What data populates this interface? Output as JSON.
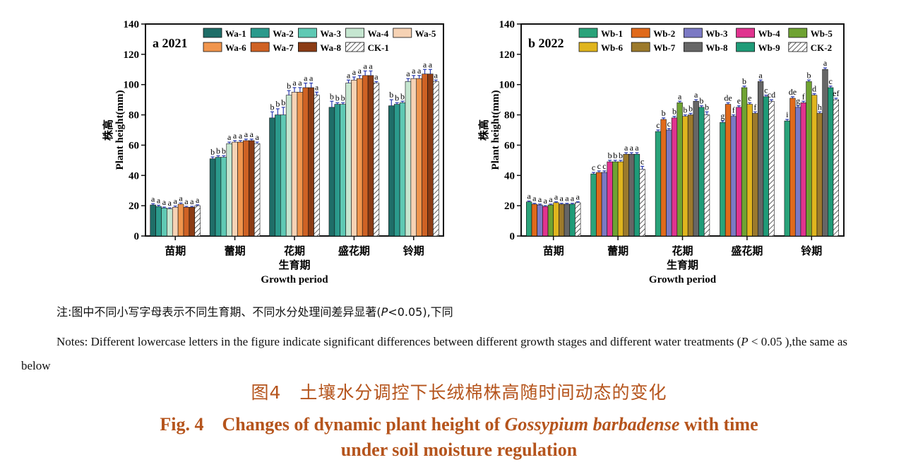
{
  "chart_data": [
    {
      "type": "bar",
      "panel_label": "a 2021",
      "ylabel_cn": "株高",
      "ylabel": "Plant height(mm)",
      "xlabel_cn": "生育期",
      "xlabel": "Growth period",
      "ylim": [
        0,
        140
      ],
      "yticks": [
        0,
        20,
        40,
        60,
        80,
        100,
        120,
        140
      ],
      "categories": [
        "苗期",
        "蕾期",
        "花期",
        "盛花期",
        "铃期"
      ],
      "legend_position": "top",
      "series": [
        {
          "name": "Wa-1",
          "color": "#1f6e68",
          "values": [
            20.5,
            51,
            78,
            85,
            86
          ],
          "errors": [
            0.8,
            1.2,
            4,
            4,
            4
          ],
          "letters": [
            "a",
            "b",
            "b",
            "b",
            "b"
          ]
        },
        {
          "name": "Wa-2",
          "color": "#2b9a8c",
          "values": [
            19.5,
            52,
            80,
            87,
            87
          ],
          "errors": [
            0.8,
            1,
            4,
            1,
            1
          ],
          "letters": [
            "a",
            "b",
            "b",
            "b",
            "b"
          ]
        },
        {
          "name": "Wa-3",
          "color": "#5fc9b4",
          "values": [
            18.5,
            52,
            80,
            87,
            88
          ],
          "errors": [
            0.6,
            1,
            5,
            1,
            1
          ],
          "letters": [
            "a",
            "b",
            "b",
            "b",
            "b"
          ]
        },
        {
          "name": "Wa-4",
          "color": "#c5e6d0",
          "values": [
            18,
            61,
            93,
            101,
            102
          ],
          "errors": [
            0.6,
            1,
            3,
            2,
            2
          ],
          "letters": [
            "a",
            "a",
            "b",
            "a",
            "a"
          ]
        },
        {
          "name": "Wa-5",
          "color": "#f6d2b4",
          "values": [
            19,
            62,
            95,
            103,
            104
          ],
          "errors": [
            0.8,
            1,
            3,
            2,
            2
          ],
          "letters": [
            "a",
            "a",
            "a",
            "a",
            "a"
          ]
        },
        {
          "name": "Wa-6",
          "color": "#f0954d",
          "values": [
            21,
            62,
            95,
            104,
            104
          ],
          "errors": [
            0.8,
            1,
            3,
            2,
            2
          ],
          "letters": [
            "a",
            "a",
            "a",
            "a",
            "a"
          ]
        },
        {
          "name": "Wa-7",
          "color": "#cf6224",
          "values": [
            19,
            63,
            98,
            106,
            107
          ],
          "errors": [
            0.6,
            1,
            3,
            3,
            3
          ],
          "letters": [
            "a",
            "a",
            "a",
            "a",
            "a"
          ]
        },
        {
          "name": "Wa-8",
          "color": "#8b3c15",
          "values": [
            19,
            63,
            98,
            106,
            107
          ],
          "errors": [
            0.6,
            1,
            3,
            3,
            3
          ],
          "letters": [
            "a",
            "a",
            "a",
            "a",
            "a"
          ]
        },
        {
          "name": "CK-1",
          "color": "#ffffff",
          "hatched": true,
          "values": [
            20,
            61,
            93,
            101,
            102
          ],
          "errors": [
            0.6,
            1,
            2,
            1,
            1
          ],
          "letters": [
            "a",
            "a",
            "a",
            "a",
            "a"
          ]
        }
      ]
    },
    {
      "type": "bar",
      "panel_label": "b 2022",
      "ylabel_cn": "株高",
      "ylabel": "Plant height(mm)",
      "xlabel_cn": "生育期",
      "xlabel": "Growth period",
      "ylim": [
        0,
        140
      ],
      "yticks": [
        0,
        20,
        40,
        60,
        80,
        100,
        120,
        140
      ],
      "categories": [
        "苗期",
        "蕾期",
        "花期",
        "盛花期",
        "铃期"
      ],
      "legend_position": "top",
      "series": [
        {
          "name": "Wb-1",
          "color": "#2aa37a",
          "values": [
            22.5,
            41,
            69,
            75,
            76
          ],
          "errors": [
            0.6,
            1,
            1,
            1,
            1
          ],
          "letters": [
            "a",
            "c",
            "c",
            "g",
            "i"
          ]
        },
        {
          "name": "Wb-2",
          "color": "#e06a1b",
          "values": [
            21,
            42,
            77,
            87,
            91
          ],
          "errors": [
            0.6,
            1,
            1,
            1,
            1
          ],
          "letters": [
            "a",
            "c",
            "b",
            "de",
            "de"
          ]
        },
        {
          "name": "Wb-3",
          "color": "#7b79c4",
          "values": [
            20.5,
            42,
            70,
            79,
            85
          ],
          "errors": [
            0.6,
            1,
            1,
            1,
            1
          ],
          "letters": [
            "a",
            "c",
            "c",
            "f",
            "g"
          ]
        },
        {
          "name": "Wb-4",
          "color": "#e0338f",
          "values": [
            19.5,
            49,
            78,
            85,
            88
          ],
          "errors": [
            0.6,
            1,
            1,
            1,
            1
          ],
          "letters": [
            "a",
            "b",
            "b",
            "e",
            "f"
          ]
        },
        {
          "name": "Wb-5",
          "color": "#6fa332",
          "values": [
            20.5,
            49,
            88,
            98,
            102
          ],
          "errors": [
            0.6,
            1,
            1,
            1,
            1
          ],
          "letters": [
            "a",
            "b",
            "a",
            "b",
            "b"
          ]
        },
        {
          "name": "Wb-6",
          "color": "#e0b51e",
          "values": [
            22,
            49,
            79,
            87,
            93
          ],
          "errors": [
            0.6,
            1,
            1,
            1,
            1
          ],
          "letters": [
            "a",
            "b",
            "b",
            "e",
            "d"
          ]
        },
        {
          "name": "Wb-7",
          "color": "#9c7a2c",
          "values": [
            21,
            54,
            80,
            81,
            81
          ],
          "errors": [
            0.6,
            1,
            1,
            1,
            1
          ],
          "letters": [
            "a",
            "a",
            "b",
            "f",
            "h"
          ]
        },
        {
          "name": "Wb-8",
          "color": "#666666",
          "values": [
            21,
            54,
            89,
            102,
            110
          ],
          "errors": [
            0.6,
            1,
            1,
            1,
            1
          ],
          "letters": [
            "a",
            "a",
            "a",
            "a",
            "a"
          ]
        },
        {
          "name": "Wb-9",
          "color": "#1f9b78",
          "values": [
            21,
            54,
            85,
            92,
            98
          ],
          "errors": [
            0.6,
            1,
            1,
            1,
            1
          ],
          "letters": [
            "a",
            "a",
            "b",
            "c",
            "c"
          ]
        },
        {
          "name": "CK-2",
          "color": "#ffffff",
          "hatched": true,
          "values": [
            22,
            44,
            80,
            89,
            90
          ],
          "errors": [
            0.6,
            2,
            2,
            1,
            1
          ],
          "letters": [
            "a",
            "c",
            "b",
            "cd",
            "ef"
          ]
        }
      ]
    }
  ],
  "note_cn": {
    "prefix": "注:图中不同小写字母表示不同生育期、不同水分处理间差异显著(",
    "p_symbol": "P",
    "suffix": "<0.05),下同"
  },
  "note_en": {
    "prefix": "Notes: Different lowercase letters in the figure indicate significant differences between different growth stages and different water treatments (",
    "p_symbol": "P",
    "suffix": " < 0.05 ),the same as below"
  },
  "caption_cn": "图4　土壤水分调控下长绒棉株高随时间动态的变化",
  "caption_en": {
    "line1_prefix": "Fig. 4　Changes of dynamic plant height of ",
    "line1_italic": "Gossypium barbadense",
    "line1_suffix": " with time",
    "line2": "under soil moisture regulation"
  }
}
